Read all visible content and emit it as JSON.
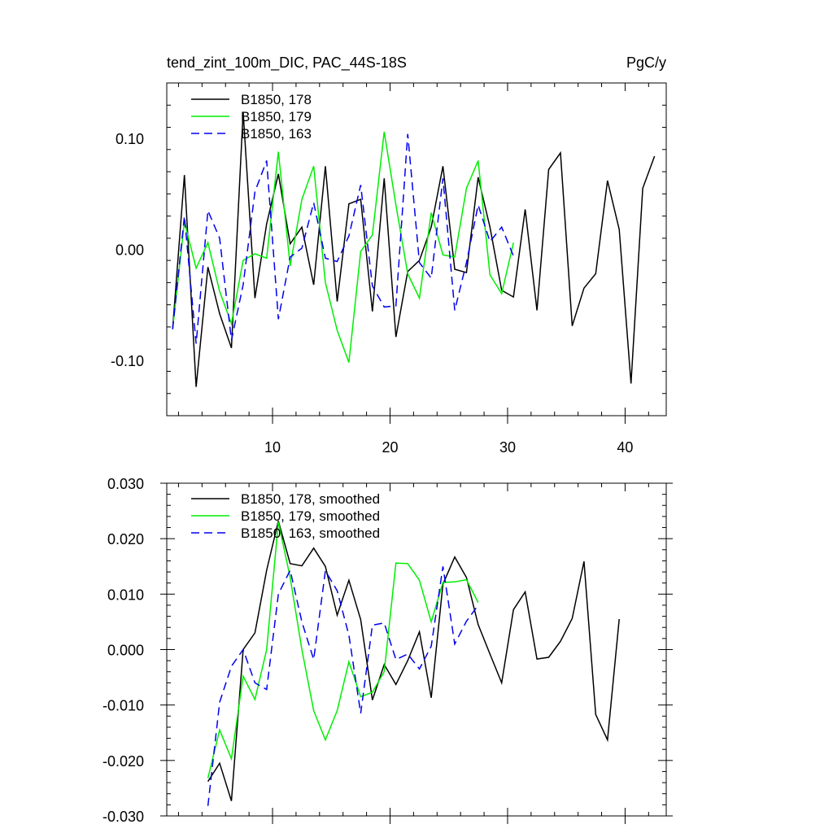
{
  "chart_data": [
    {
      "type": "line",
      "title": "tend_zint_100m_DIC, PAC_44S-18S",
      "units": "PgC/y",
      "xlim": [
        1.0,
        43.5
      ],
      "ylim": [
        -0.15,
        0.15
      ],
      "xticks": [
        10,
        20,
        30,
        40
      ],
      "xtick_labels": [
        "10",
        "20",
        "30",
        "40"
      ],
      "yticks": [
        -0.1,
        0.0,
        0.1
      ],
      "ytick_labels": [
        "-0.10",
        "0.00",
        "0.10"
      ],
      "legend_position": "top-left",
      "series": [
        {
          "name": "B1850, 178",
          "color": "#000000",
          "dash": "solid",
          "x_start": 1.5,
          "values": [
            -0.072,
            0.067,
            -0.124,
            -0.016,
            -0.058,
            -0.089,
            0.124,
            -0.044,
            0.023,
            0.068,
            0.005,
            0.02,
            -0.032,
            0.075,
            -0.047,
            0.041,
            0.045,
            -0.056,
            0.064,
            -0.079,
            -0.02,
            -0.01,
            0.02,
            0.075,
            -0.018,
            -0.021,
            0.065,
            0.02,
            -0.037,
            -0.043,
            0.036,
            -0.055,
            0.072,
            0.087,
            -0.069,
            -0.035,
            -0.022,
            0.062,
            0.018,
            -0.121,
            0.055,
            0.084
          ]
        },
        {
          "name": "B1850, 179",
          "color": "#00ee00",
          "dash": "solid",
          "x_start": 1.5,
          "values": [
            -0.072,
            0.025,
            -0.017,
            0.006,
            -0.038,
            -0.067,
            -0.01,
            -0.004,
            -0.008,
            0.088,
            -0.015,
            0.045,
            0.075,
            -0.03,
            -0.073,
            -0.102,
            -0.002,
            0.013,
            0.106,
            0.04,
            -0.022,
            -0.044,
            0.033,
            -0.005,
            -0.007,
            0.055,
            0.08,
            -0.023,
            -0.04,
            0.006
          ]
        },
        {
          "name": "B1850, 163",
          "color": "#0000ee",
          "dash": "dashed",
          "x_start": 1.5,
          "values": [
            -0.072,
            0.03,
            -0.085,
            0.035,
            0.01,
            -0.082,
            -0.032,
            0.052,
            0.08,
            -0.063,
            -0.007,
            0.001,
            0.042,
            -0.008,
            -0.011,
            0.012,
            0.058,
            -0.033,
            -0.052,
            -0.051,
            0.104,
            -0.012,
            -0.026,
            0.064,
            -0.055,
            -0.012,
            0.04,
            0.007,
            0.02,
            -0.006
          ]
        }
      ]
    },
    {
      "type": "line",
      "xlim": [
        1.0,
        43.5
      ],
      "ylim": [
        -0.03,
        0.03
      ],
      "xticks": [
        10,
        20,
        30,
        40
      ],
      "yticks": [
        -0.03,
        -0.02,
        -0.01,
        0.0,
        0.01,
        0.02,
        0.03
      ],
      "ytick_labels": [
        "-0.030",
        "-0.020",
        "-0.010",
        "0.000",
        "0.010",
        "0.020",
        "0.030"
      ],
      "legend_position": "top-left",
      "series": [
        {
          "name": "B1850, 178, smoothed",
          "color": "#000000",
          "dash": "solid",
          "x_start": 4.5,
          "values": [
            -0.0238,
            -0.0205,
            -0.0273,
            0.0,
            0.003,
            0.0143,
            0.0232,
            0.0155,
            0.0151,
            0.0183,
            0.015,
            0.0062,
            0.0125,
            0.0054,
            -0.0091,
            -0.0027,
            -0.0063,
            -0.002,
            0.0032,
            -0.0087,
            0.0118,
            0.0167,
            0.013,
            0.0045,
            -0.0008,
            -0.006,
            0.0072,
            0.0104,
            -0.0017,
            -0.0014,
            0.0015,
            0.0056,
            0.0159,
            -0.0117,
            -0.0163,
            0.0055
          ]
        },
        {
          "name": "B1850, 179, smoothed",
          "color": "#00ee00",
          "dash": "solid",
          "x_start": 4.5,
          "values": [
            -0.0232,
            -0.0145,
            -0.0197,
            -0.0048,
            -0.009,
            0.0,
            0.023,
            0.013,
            0.0,
            -0.011,
            -0.0163,
            -0.011,
            -0.0022,
            -0.0085,
            -0.0077,
            -0.004,
            0.0156,
            0.0155,
            0.0125,
            0.005,
            0.0121,
            0.0122,
            0.0126,
            0.0085
          ]
        },
        {
          "name": "B1850, 163, smoothed",
          "color": "#0000ee",
          "dash": "dashed",
          "x_start": 4.5,
          "values": [
            -0.0282,
            -0.0095,
            -0.003,
            0.0,
            -0.006,
            -0.0072,
            0.01,
            0.0143,
            0.005,
            -0.0018,
            0.0142,
            0.0106,
            0.0026,
            -0.0115,
            0.0044,
            0.0048,
            -0.0018,
            -0.0008,
            -0.0035,
            0.0006,
            0.015,
            0.001,
            0.0051,
            0.008
          ]
        }
      ]
    }
  ]
}
